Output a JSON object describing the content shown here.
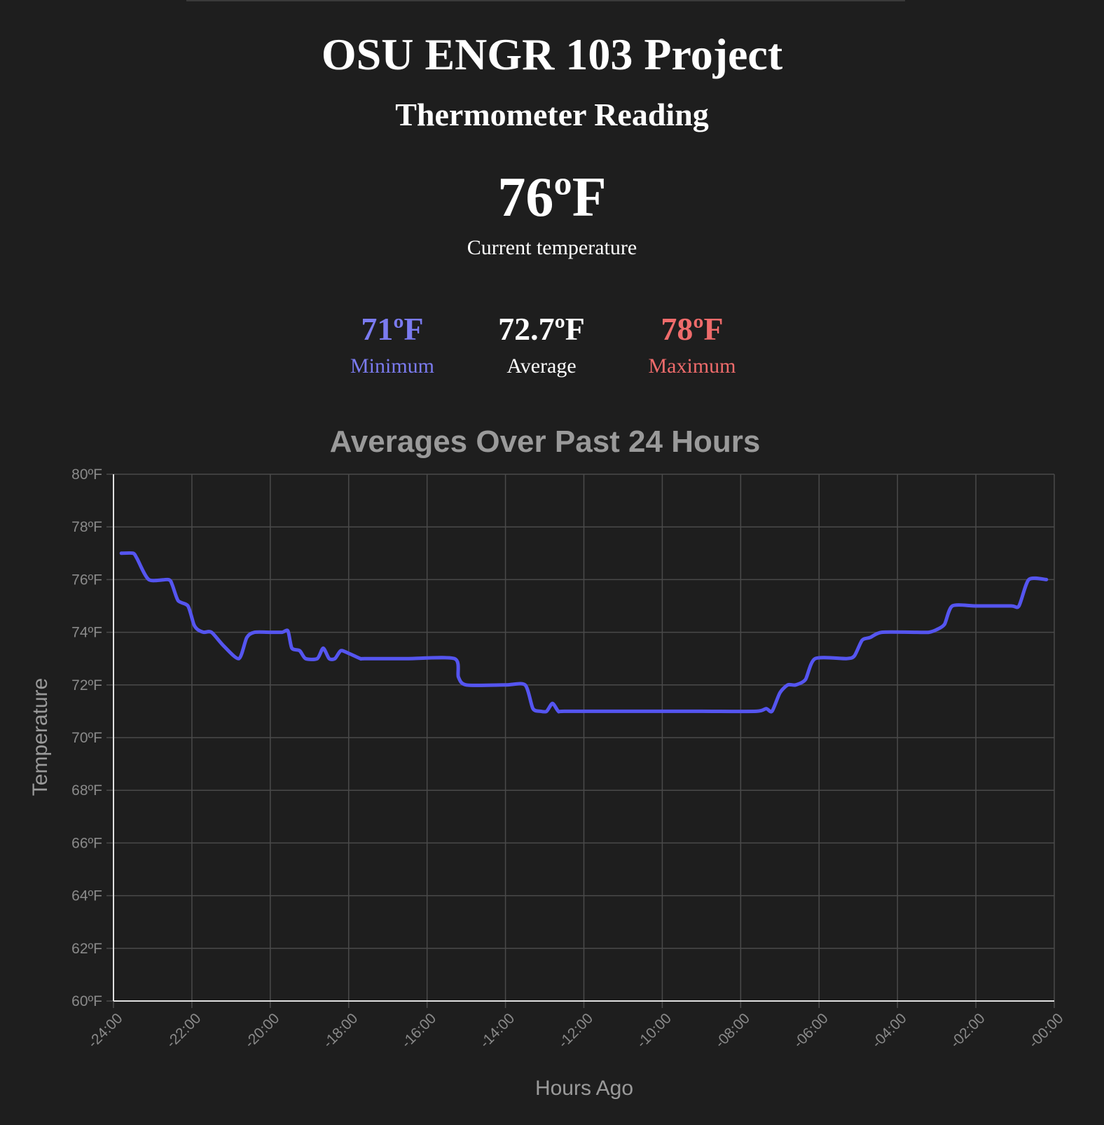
{
  "header": {
    "title": "OSU ENGR 103 Project",
    "subtitle": "Thermometer Reading"
  },
  "current": {
    "value": "76ºF",
    "label": "Current temperature"
  },
  "stats": {
    "min": {
      "value": "71ºF",
      "label": "Minimum",
      "color": "#7b7bf0"
    },
    "avg": {
      "value": "72.7ºF",
      "label": "Average",
      "color": "#ffffff"
    },
    "max": {
      "value": "78ºF",
      "label": "Maximum",
      "color": "#ef6b6b"
    }
  },
  "colors": {
    "background": "#1e1e1e",
    "line": "#5555f0",
    "grid": "#4a4a4a",
    "axis": "#e0e0e0"
  },
  "chart_data": {
    "type": "line",
    "title": "Averages Over Past 24 Hours",
    "xlabel": "Hours Ago",
    "ylabel": "Temperature",
    "xlim": [
      -24,
      0
    ],
    "ylim": [
      60,
      80
    ],
    "grid": true,
    "x_tick_labels": [
      "-24:00",
      "-22:00",
      "-20:00",
      "-18:00",
      "-16:00",
      "-14:00",
      "-12:00",
      "-10:00",
      "-08:00",
      "-06:00",
      "-04:00",
      "-02:00",
      "-00:00"
    ],
    "y_tick_labels": [
      "60ºF",
      "62ºF",
      "64ºF",
      "66ºF",
      "68ºF",
      "70ºF",
      "72ºF",
      "74ºF",
      "76ºF",
      "78ºF",
      "80ºF"
    ],
    "series": [
      {
        "x": [
          -23.8,
          -23.5,
          -23.4,
          -23.1,
          -22.6,
          -22.5,
          -22.35,
          -22.1,
          -21.95,
          -21.85,
          -21.7,
          -21.5,
          -21.2,
          -20.8,
          -20.6,
          -20.4,
          -20.0,
          -19.7,
          -19.55,
          -19.45,
          -19.25,
          -19.1,
          -18.8,
          -18.65,
          -18.5,
          -18.35,
          -18.2,
          -18.0,
          -17.7,
          -17.6,
          -16.5,
          -15.3,
          -15.2,
          -15.0,
          -14.0,
          -13.5,
          -13.3,
          -13.1,
          -12.95,
          -12.8,
          -12.65,
          -12.5,
          -11.0,
          -9.0,
          -7.6,
          -7.35,
          -7.2,
          -7.0,
          -6.8,
          -6.6,
          -6.35,
          -6.1,
          -5.3,
          -5.1,
          -4.9,
          -4.7,
          -4.4,
          -3.5,
          -3.2,
          -3.0,
          -2.8,
          -2.6,
          -2.0,
          -1.1,
          -0.9,
          -0.65,
          -0.2
        ],
        "y": [
          77,
          77,
          76.8,
          76,
          76,
          75.8,
          75.2,
          75,
          74.3,
          74.1,
          74,
          74,
          73.5,
          73,
          73.8,
          74,
          74,
          74,
          74.05,
          73.4,
          73.3,
          73,
          73,
          73.4,
          73,
          73,
          73.3,
          73.2,
          73,
          73,
          73,
          73,
          72.3,
          72,
          72,
          72,
          71.1,
          71,
          71,
          71.3,
          71,
          71,
          71,
          71,
          71,
          71.1,
          71,
          71.7,
          72,
          72,
          72.2,
          73,
          73,
          73.1,
          73.7,
          73.8,
          74,
          74,
          74,
          74.1,
          74.3,
          75,
          75,
          75,
          75,
          76,
          76
        ]
      }
    ]
  }
}
